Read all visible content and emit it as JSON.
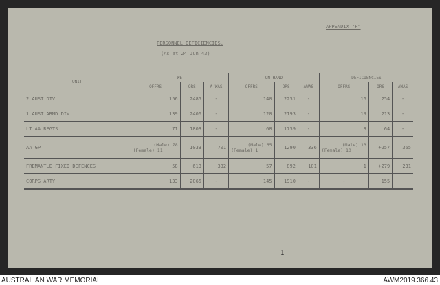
{
  "document": {
    "appendix": "APPENDIX \"F\"",
    "title": "PERSONNEL DEFICIENCIES.",
    "subtitle": "(As at 24 Jun 43)",
    "table": {
      "unit_header": "UNIT",
      "groups": [
        "WE",
        "ON HAND",
        "DEFICIENCIES"
      ],
      "subheaders": [
        "OFFRS",
        "ORS",
        "A WAS",
        "OFFRS",
        "ORS",
        "AWAS",
        "OFFRS",
        "ORS",
        "AWAS"
      ],
      "rows": [
        {
          "unit": "2 AUST DIV",
          "cells": [
            "156",
            "2485",
            "-",
            "140",
            "2231",
            "-",
            "16",
            "254",
            "-"
          ]
        },
        {
          "unit": "1 AUST ARMD DIV",
          "cells": [
            "139",
            "2406",
            "-",
            "120",
            "2193",
            "-",
            "19",
            "213",
            "-"
          ]
        },
        {
          "unit": "LT AA REGTS",
          "cells": [
            "71",
            "1803",
            "-",
            "68",
            "1739",
            "-",
            "3",
            "64",
            "-"
          ]
        },
        {
          "unit": "AA GP",
          "cells": [
            "(Male) 78",
            "1033",
            "701",
            "(Male) 65",
            "1290",
            "336",
            "(Male) 13",
            "+257",
            "365"
          ],
          "female": [
            "(Female) 11",
            "(Female) 1",
            "(Female) 10"
          ]
        },
        {
          "unit": "FREMANTLE FIXED DEFENCES",
          "cells": [
            "58",
            "613",
            "332",
            "57",
            "892",
            "101",
            "1",
            "+279",
            "231"
          ]
        },
        {
          "unit": "CORPS ARTY",
          "cells": [
            "133",
            "2065",
            "-",
            "145",
            "1910",
            "-",
            "-",
            "155",
            ""
          ]
        }
      ]
    }
  },
  "page_number": "1",
  "footer": {
    "left": "AUSTRALIAN WAR MEMORIAL",
    "right": "AWM2019.366.43"
  }
}
